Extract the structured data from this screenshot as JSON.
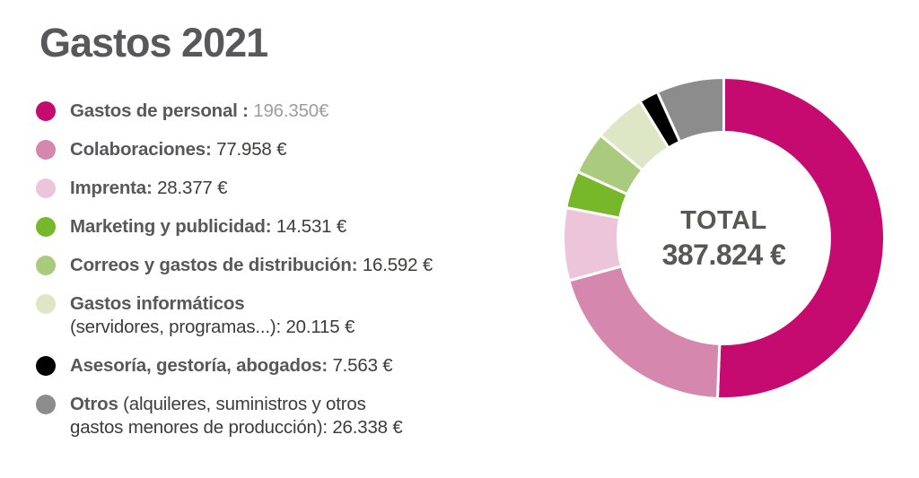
{
  "title": "Gastos 2021",
  "chart_data": {
    "type": "pie",
    "donut": true,
    "title": "Gastos 2021",
    "categories": [
      "Gastos de personal",
      "Colaboraciones",
      "Imprenta",
      "Marketing y publicidad",
      "Correos y gastos de distribución",
      "Gastos informáticos (servidores, programas...)",
      "Asesoría, gestoría, abogados",
      "Otros (alquileres, suministros y otros gastos menores de producción)"
    ],
    "values": [
      196350,
      77958,
      28377,
      14531,
      16592,
      20115,
      7563,
      26338
    ],
    "value_labels": [
      "196.350€",
      "77.958 €",
      "28.377 €",
      "14.531 €",
      "16.592 €",
      "20.115 €",
      "7.563 €",
      "26.338 €"
    ],
    "colors": [
      "#c60b70",
      "#d687ae",
      "#ecc5da",
      "#76b82a",
      "#aaca7d",
      "#dde7c5",
      "#000000",
      "#8c8c8c"
    ],
    "total": 387824,
    "center_label": "TOTAL",
    "center_value": "387.824 €",
    "start_angle_deg": 0,
    "direction": "clockwise",
    "legend_position": "left",
    "currency": "EUR"
  },
  "legend": {
    "items": [
      {
        "bold": "Gastos de personal :",
        "rest": " 196.350€",
        "color": "#c60b70",
        "value_color": "#9d9d9c"
      },
      {
        "bold": "Colaboraciones:",
        "rest": " 77.958 €",
        "color": "#d687ae"
      },
      {
        "bold": "Imprenta:",
        "rest": " 28.377 €",
        "color": "#ecc5da"
      },
      {
        "bold": "Marketing y publicidad:",
        "rest": " 14.531 €",
        "color": "#76b82a"
      },
      {
        "bold": "Correos y gastos de distribución:",
        "rest": " 16.592 €",
        "color": "#aaca7d"
      },
      {
        "bold": "Gastos informáticos",
        "rest": "\n(servidores, programas...): 20.115 €",
        "color": "#dde7c5"
      },
      {
        "bold": "Asesoría, gestoría, abogados:",
        "rest": " 7.563 €",
        "color": "#000000"
      },
      {
        "bold": "Otros",
        "rest": " (alquileres, suministros y otros\ngastos menores de producción): 26.338 €",
        "color": "#8c8c8c"
      }
    ]
  },
  "style_colors": {
    "title_text": "#58585a",
    "label_text": "#58585a",
    "value_text": "#3c3c3b",
    "muted_value_text": "#9d9d9c",
    "center_text": "#575756",
    "segment_gap": "#ffffff"
  }
}
